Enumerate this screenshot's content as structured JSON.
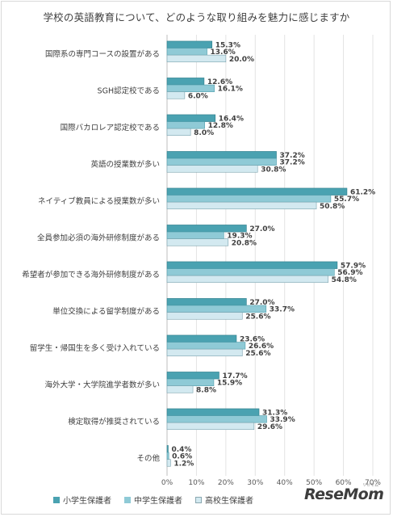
{
  "chart_data": {
    "type": "bar",
    "orientation": "horizontal",
    "title": "学校の英語教育について、どのような取り組みを魅力に感じますか",
    "categories": [
      "国際系の専門コースの設置がある",
      "SGH認定校である",
      "国際バカロレア認定校である",
      "英語の授業数が多い",
      "ネイティブ教員による授業数が多い",
      "全員参加必須の海外研修制度がある",
      "希望者が参加できる海外研修制度がある",
      "単位交換による留学制度がある",
      "留学生・帰国生を多く受け入れている",
      "海外大学・大学院進学者数が多い",
      "検定取得が推奨されている",
      "その他"
    ],
    "series": [
      {
        "name": "小学生保護者",
        "color": "#4aa2b1",
        "values": [
          15.3,
          12.6,
          16.4,
          37.2,
          61.2,
          27.0,
          57.9,
          27.0,
          23.6,
          17.7,
          31.3,
          0.4
        ]
      },
      {
        "name": "中学生保護者",
        "color": "#8fcad6",
        "values": [
          13.6,
          16.1,
          12.8,
          37.2,
          55.7,
          19.3,
          56.9,
          33.7,
          26.6,
          15.9,
          33.9,
          0.6
        ]
      },
      {
        "name": "高校生保護者",
        "color": "#d3e9f0",
        "values": [
          20.0,
          6.0,
          8.0,
          30.8,
          50.8,
          20.8,
          54.8,
          25.6,
          25.6,
          8.8,
          29.6,
          1.2
        ]
      }
    ],
    "xlim": [
      0,
      70
    ],
    "xticks": [
      "0%",
      "10%",
      "20%",
      "30%",
      "40%",
      "50%",
      "60%",
      "70%"
    ],
    "grid": true,
    "legend_position": "bottom"
  },
  "brand": {
    "name": "ReseMom",
    "sub": "リセマム"
  }
}
